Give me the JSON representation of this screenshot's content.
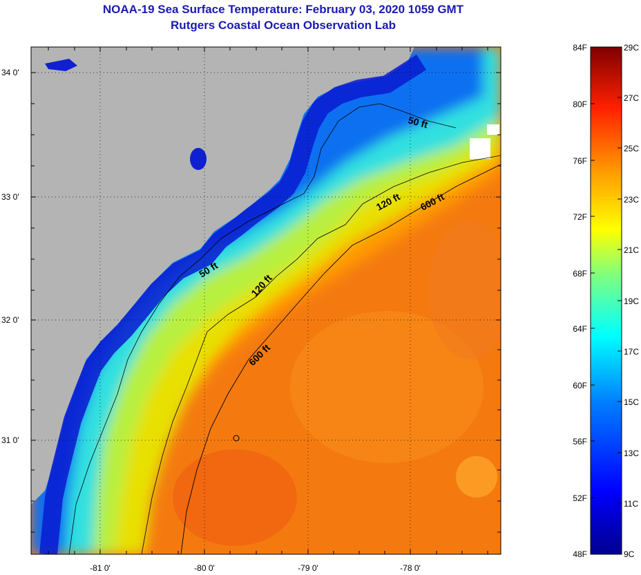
{
  "header": {
    "title": "NOAA-19 Sea Surface Temperature:  February 03, 2020 1059 GMT",
    "subtitle": "Rutgers Coastal Ocean Observation Lab"
  },
  "map": {
    "latitude_labels": [
      "34 0'",
      "33 0'",
      "32 0'",
      "31 0'"
    ],
    "longitude_labels": [
      "-81 0'",
      "-80 0'",
      "-79 0'",
      "-78 0'"
    ],
    "depth_contour_labels": [
      "50 ft",
      "50 ft",
      "120 ft",
      "120 ft",
      "600 ft",
      "600 ft"
    ],
    "colors": {
      "land": "#b4b4b4",
      "frame": "#000000",
      "grid": "#000000"
    }
  },
  "colorbar": {
    "fahrenheit_labels": [
      "84F",
      "80F",
      "76F",
      "72F",
      "68F",
      "64F",
      "60F",
      "56F",
      "52F",
      "48F"
    ],
    "celsius_labels": [
      "29C",
      "27C",
      "25C",
      "23C",
      "21C",
      "19C",
      "17C",
      "15C",
      "13C",
      "11C",
      "9C"
    ],
    "colors": [
      "#7f0000",
      "#ff0000",
      "#ff7f00",
      "#ffff00",
      "#7fff7f",
      "#00ffff",
      "#007fff",
      "#0000ff",
      "#00008f"
    ]
  }
}
